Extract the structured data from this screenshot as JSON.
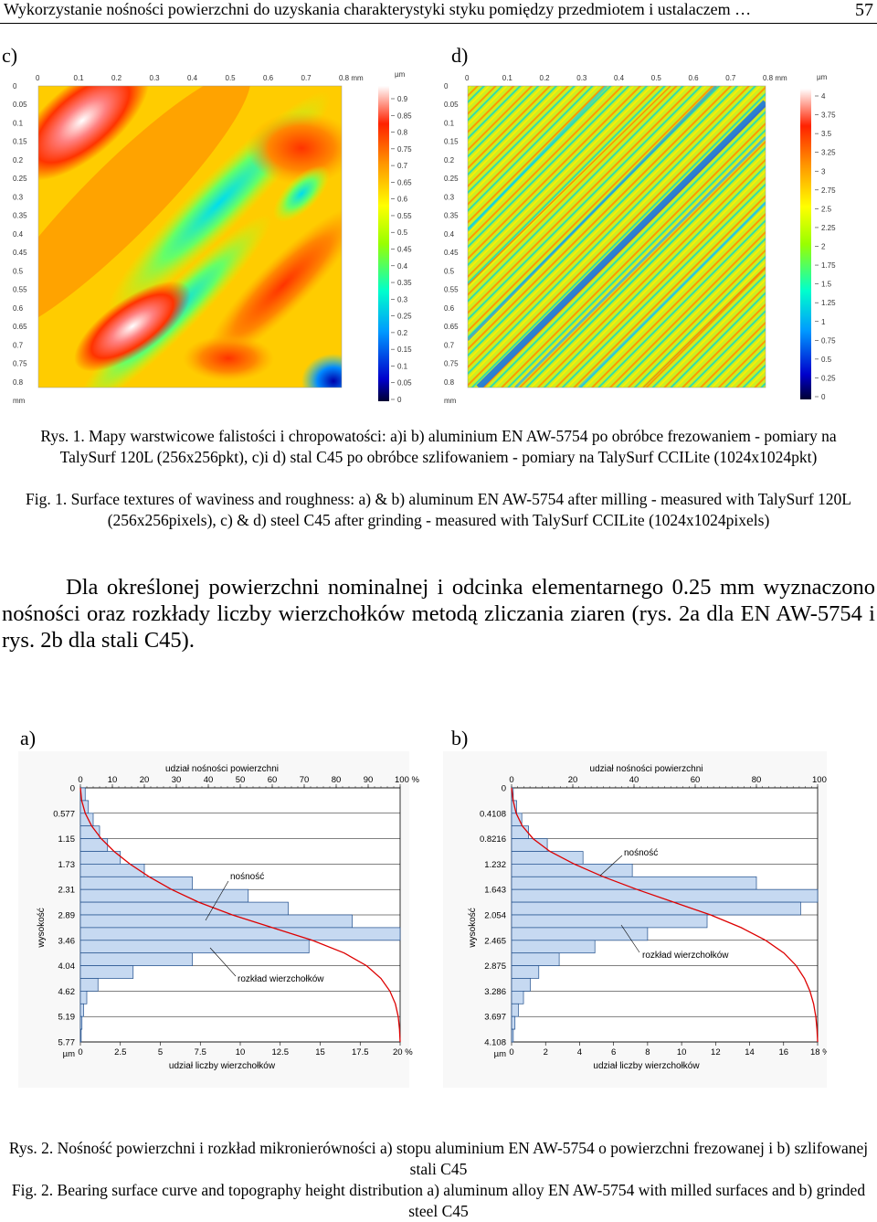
{
  "header": {
    "title": "Wykorzystanie nośności powierzchni do uzyskania charakterystyki styku pomiędzy przedmiotem i ustalaczem …",
    "page_number": "57"
  },
  "figure1": {
    "panel_c": {
      "label": "c)",
      "x_ticks": [
        "0",
        "0.1",
        "0.2",
        "0.3",
        "0.4",
        "0.5",
        "0.6",
        "0.7",
        "0.8 mm"
      ],
      "y_ticks": [
        "0",
        "0.05",
        "0.1",
        "0.15",
        "0.2",
        "0.25",
        "0.3",
        "0.35",
        "0.4",
        "0.45",
        "0.5",
        "0.55",
        "0.6",
        "0.65",
        "0.7",
        "0.75",
        "0.8",
        "mm"
      ],
      "scale_unit": "µm",
      "scale_ticks": [
        "0.9",
        "0.85",
        "0.8",
        "0.75",
        "0.7",
        "0.65",
        "0.6",
        "0.55",
        "0.5",
        "0.45",
        "0.4",
        "0.35",
        "0.3",
        "0.25",
        "0.2",
        "0.15",
        "0.1",
        "0.05",
        "0"
      ]
    },
    "panel_d": {
      "label": "d)",
      "x_ticks": [
        "0",
        "0.1",
        "0.2",
        "0.3",
        "0.4",
        "0.5",
        "0.6",
        "0.7",
        "0.8 mm"
      ],
      "y_ticks": [
        "0",
        "0.05",
        "0.1",
        "0.15",
        "0.2",
        "0.25",
        "0.3",
        "0.35",
        "0.4",
        "0.45",
        "0.5",
        "0.55",
        "0.6",
        "0.65",
        "0.7",
        "0.75",
        "0.8",
        "mm"
      ],
      "scale_unit": "µm",
      "scale_ticks": [
        "4",
        "3.75",
        "3.5",
        "3.25",
        "3",
        "2.75",
        "2.5",
        "2.25",
        "2",
        "1.75",
        "1.5",
        "1.25",
        "1",
        "0.75",
        "0.5",
        "0.25",
        "0"
      ]
    },
    "caption_pl": "Rys. 1. Mapy warstwicowe falistości i chropowatości: a)i b) aluminium EN AW-5754 po obróbce frezowaniem - pomiary na TalySurf 120L (256x256pkt), c)i d) stal C45 po obróbce szlifowaniem - pomiary na TalySurf CCILite (1024x1024pkt)",
    "caption_en": "Fig. 1. Surface textures of waviness and roughness: a) & b) aluminum EN AW-5754 after milling - measured with TalySurf 120L (256x256pixels), c) & d) steel C45 after grinding - measured with TalySurf CCILite (1024x1024pixels)"
  },
  "body_text": "Dla określonej powierzchni nominalnej i odcinka elementarnego 0.25 mm wyznaczono nośności oraz rozkłady liczby wierzchołków metodą zliczania ziaren (rys. 2a dla EN AW-5754 i rys. 2b dla stali C45).",
  "figure2": {
    "caption_pl": "Rys. 2. Nośność powierzchni i rozkład mikronierówności a) stopu aluminium EN AW-5754 o powierzchni frezowanej i b) szlifowanej stali C45",
    "caption_en": "Fig. 2. Bearing surface curve and topography height distribution a) aluminum alloy EN AW-5754 with milled surfaces and b) grinded steel C45"
  },
  "chart_data": [
    {
      "type": "bar",
      "panel": "a)",
      "top_axis_title": "udział nośności powierzchni",
      "top_ticks": [
        "0",
        "10",
        "20",
        "30",
        "40",
        "50",
        "60",
        "70",
        "80",
        "90",
        "100 %"
      ],
      "bottom_axis_title": "udział liczby wierzchołków",
      "bottom_ticks": [
        "0",
        "2.5",
        "5",
        "7.5",
        "10",
        "12.5",
        "15",
        "17.5",
        "20 %"
      ],
      "y_axis_title": "wysokość",
      "y_unit": "µm",
      "y_ticks": [
        "0",
        "0.577",
        "1.15",
        "1.73",
        "2.31",
        "2.89",
        "3.46",
        "4.04",
        "4.62",
        "5.19",
        "5.77"
      ],
      "ylim": [
        0,
        5.77
      ],
      "bottom_xlim": [
        0,
        20
      ],
      "top_xlim": [
        0,
        100
      ],
      "annotation_bearing": "nośność",
      "annotation_distribution": "rozkład wierzchołków",
      "bin_edges_um": [
        0,
        0.2885,
        0.577,
        0.8655,
        1.154,
        1.4425,
        1.731,
        2.0195,
        2.308,
        2.5965,
        2.885,
        3.1735,
        3.462,
        3.7505,
        4.039,
        4.3275,
        4.616,
        4.9045,
        5.193,
        5.4815,
        5.77
      ],
      "distribution_pct": [
        0.3,
        0.5,
        0.8,
        1.2,
        1.7,
        2.5,
        4.0,
        7.0,
        10.5,
        13.0,
        17.0,
        20.0,
        14.3,
        7.0,
        3.3,
        1.1,
        0.4,
        0.2,
        0.1,
        0.05
      ],
      "bearing_curve": {
        "x_pct": [
          0,
          0.4,
          1.5,
          3.5,
          6.5,
          10.5,
          15.5,
          21.5,
          28.5,
          37.0,
          47.5,
          60.0,
          72.5,
          82.5,
          89.5,
          94.0,
          96.8,
          98.5,
          99.4,
          99.8,
          100
        ],
        "y_um": [
          0,
          0.2885,
          0.577,
          0.8655,
          1.154,
          1.4425,
          1.731,
          2.0195,
          2.308,
          2.5965,
          2.885,
          3.1735,
          3.462,
          3.7505,
          4.039,
          4.3275,
          4.616,
          4.9045,
          5.193,
          5.4815,
          5.77
        ]
      }
    },
    {
      "type": "bar",
      "panel": "b)",
      "top_axis_title": "udział nośności powierzchni",
      "top_ticks": [
        "0",
        "20",
        "40",
        "60",
        "80",
        "100 %"
      ],
      "bottom_axis_title": "udział liczby wierzchołków",
      "bottom_ticks": [
        "0",
        "2",
        "4",
        "6",
        "8",
        "10",
        "12",
        "14",
        "16",
        "18 %"
      ],
      "y_axis_title": "wysokość",
      "y_unit": "µm",
      "y_ticks": [
        "0",
        "0.4108",
        "0.8216",
        "1.232",
        "1.643",
        "2.054",
        "2.465",
        "2.875",
        "3.286",
        "3.697",
        "4.108"
      ],
      "ylim": [
        0,
        4.108
      ],
      "bottom_xlim": [
        0,
        18
      ],
      "top_xlim": [
        0,
        100
      ],
      "annotation_bearing": "nośność",
      "annotation_distribution": "rozkład wierzchołków",
      "bin_edges_um": [
        0,
        0.2054,
        0.4108,
        0.6162,
        0.8216,
        1.027,
        1.232,
        1.4375,
        1.643,
        1.8485,
        2.054,
        2.2595,
        2.465,
        2.6705,
        2.875,
        3.0805,
        3.286,
        3.4915,
        3.697,
        3.9025,
        4.108
      ],
      "distribution_pct": [
        0.1,
        0.3,
        0.6,
        1.0,
        2.1,
        4.2,
        7.1,
        14.4,
        18.0,
        17.0,
        11.5,
        8.0,
        4.9,
        2.8,
        1.6,
        1.1,
        0.7,
        0.4,
        0.2,
        0.1
      ],
      "bearing_curve": {
        "x_pct": [
          0,
          0.5,
          1.5,
          3.5,
          7.0,
          12.5,
          20.5,
          30.0,
          41.0,
          53.0,
          65.0,
          75.0,
          83.0,
          89.0,
          93.0,
          95.7,
          97.5,
          98.7,
          99.4,
          99.8,
          100
        ],
        "y_um": [
          0,
          0.2054,
          0.4108,
          0.6162,
          0.8216,
          1.027,
          1.232,
          1.4375,
          1.643,
          1.8485,
          2.054,
          2.2595,
          2.465,
          2.6705,
          2.875,
          3.0805,
          3.286,
          3.4915,
          3.697,
          3.9025,
          4.108
        ]
      }
    }
  ]
}
